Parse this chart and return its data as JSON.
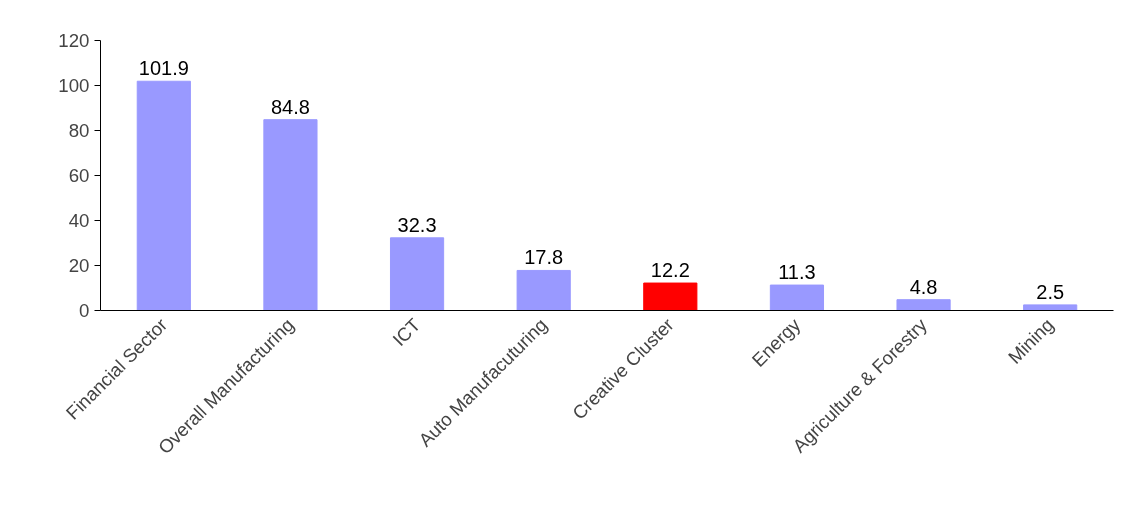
{
  "chart_data": {
    "type": "bar",
    "categories": [
      "Financial Sector",
      "Overall Manufacturing",
      "ICT",
      "Auto Manufacuturing",
      "Creative Cluster",
      "Energy",
      "Agriculture & Forestry",
      "Mining"
    ],
    "values": [
      101.9,
      84.8,
      32.3,
      17.8,
      12.2,
      11.3,
      4.8,
      2.5
    ],
    "colors": [
      "#9999ff",
      "#9999ff",
      "#9999ff",
      "#9999ff",
      "#ff0000",
      "#9999ff",
      "#9999ff",
      "#9999ff"
    ],
    "ylim": [
      0,
      120
    ],
    "yticks": [
      0,
      20,
      40,
      60,
      80,
      100,
      120
    ],
    "data_labels": true,
    "grid": false
  }
}
